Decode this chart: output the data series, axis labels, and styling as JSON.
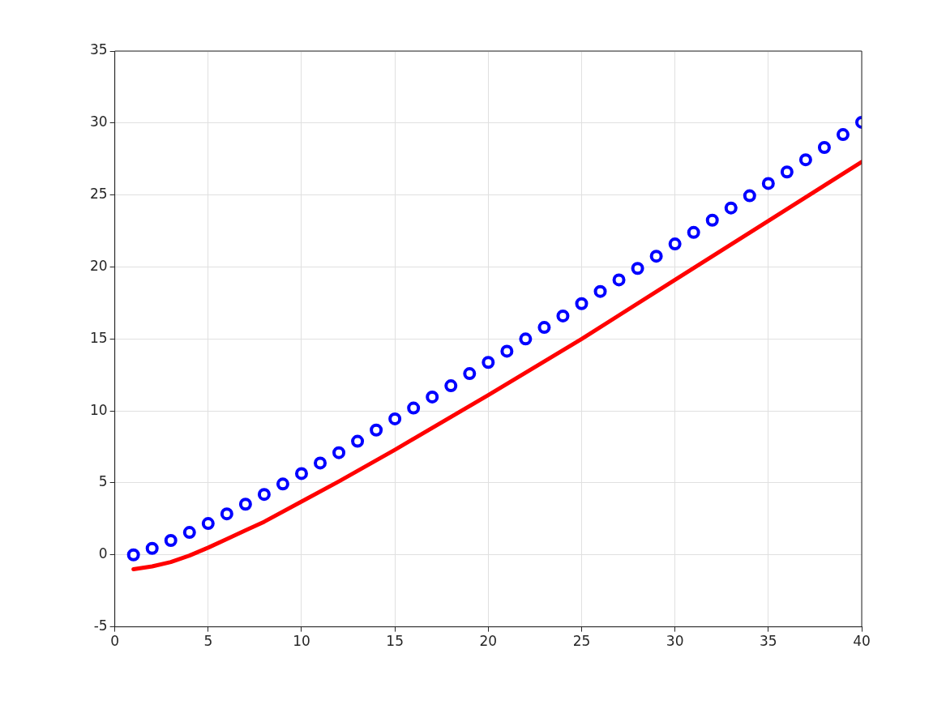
{
  "chart_data": {
    "type": "scatter",
    "x": [
      1,
      2,
      3,
      4,
      5,
      6,
      7,
      8,
      9,
      10,
      11,
      12,
      13,
      14,
      15,
      16,
      17,
      18,
      19,
      20,
      21,
      22,
      23,
      24,
      25,
      26,
      27,
      28,
      29,
      30,
      31,
      32,
      33,
      34,
      35,
      36,
      37,
      38,
      39,
      40
    ],
    "series": [
      {
        "type": "scatter",
        "marker": "circle",
        "color": "#0000ff",
        "values": [
          0,
          0.45,
          1.0,
          1.56,
          2.18,
          2.85,
          3.52,
          4.2,
          4.92,
          5.65,
          6.38,
          7.1,
          7.89,
          8.67,
          9.45,
          10.2,
          10.97,
          11.75,
          12.59,
          13.37,
          14.15,
          15.0,
          15.8,
          16.6,
          17.45,
          18.3,
          19.1,
          19.9,
          20.75,
          21.6,
          22.4,
          23.25,
          24.1,
          24.95,
          25.8,
          26.6,
          27.45,
          28.3,
          29.2,
          30.05
        ]
      },
      {
        "type": "line",
        "marker": "none",
        "line_style": "solid",
        "color": "#ff0000",
        "x": [
          1,
          2,
          3,
          4,
          5,
          6,
          7,
          8,
          10,
          12,
          15,
          20,
          25,
          30,
          35,
          40
        ],
        "values": [
          -1.0,
          -0.8,
          -0.5,
          -0.05,
          0.5,
          1.1,
          1.7,
          2.3,
          3.7,
          5.1,
          7.3,
          11.1,
          15.0,
          19.1,
          23.2,
          27.3
        ]
      }
    ],
    "xlim": [
      0,
      40
    ],
    "xticks": [
      0,
      5,
      10,
      15,
      20,
      25,
      30,
      35,
      40
    ],
    "ylim": [
      -5,
      35
    ],
    "yticks": [
      -5,
      0,
      5,
      10,
      15,
      20,
      25,
      30,
      35
    ],
    "grid": true,
    "legend": false
  }
}
